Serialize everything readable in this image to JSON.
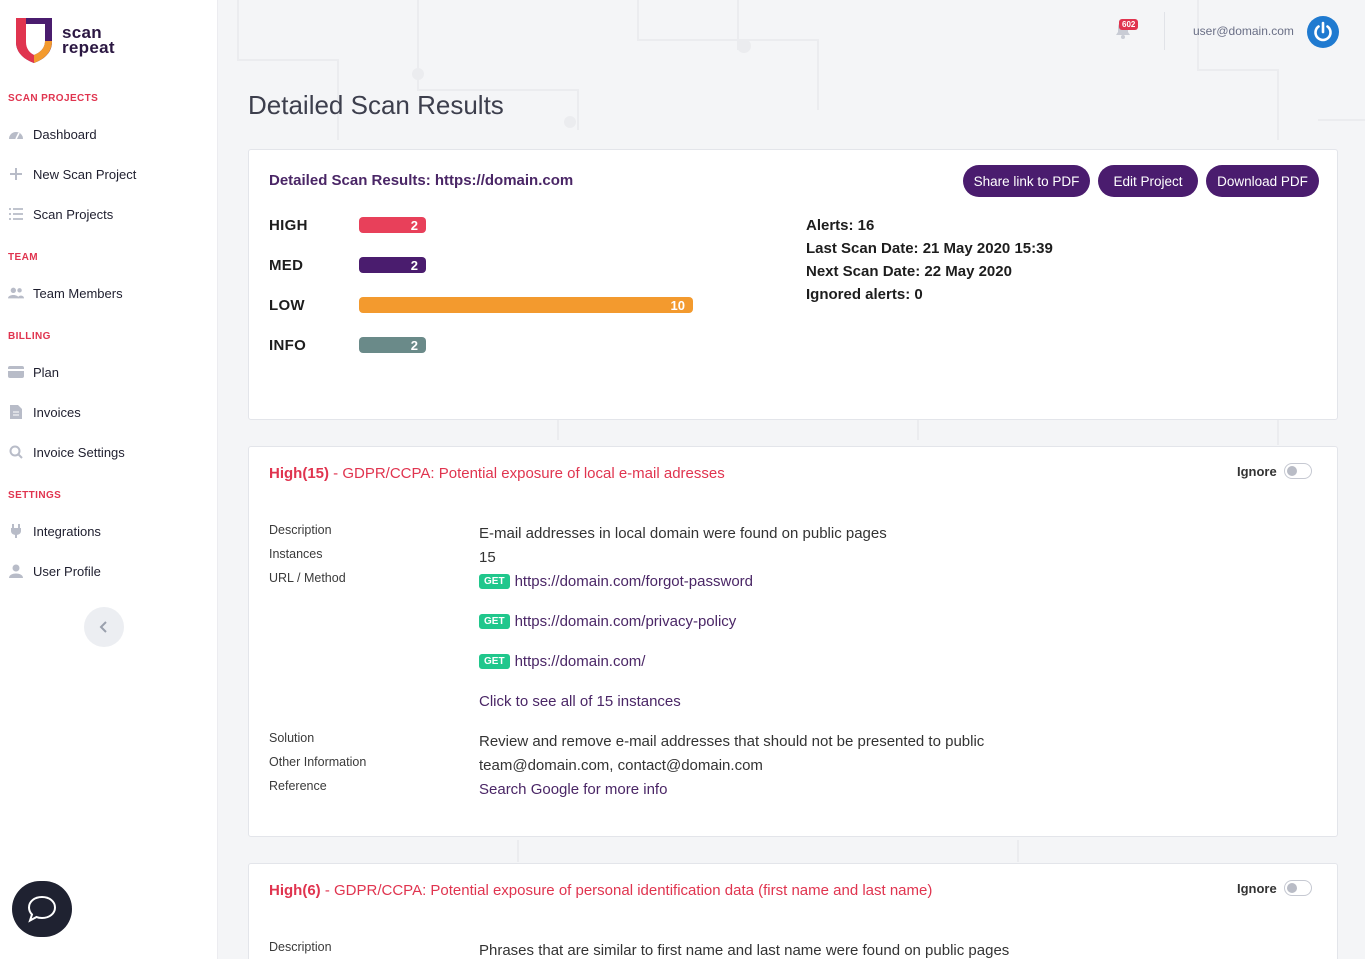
{
  "brand": {
    "line1": "scan",
    "line2": "repeat"
  },
  "sidebar": {
    "sections": [
      {
        "label": "SCAN PROJECTS"
      },
      {
        "label": "TEAM"
      },
      {
        "label": "BILLING"
      },
      {
        "label": "SETTINGS"
      }
    ],
    "items": [
      {
        "label": "Dashboard",
        "icon": "gauge-icon"
      },
      {
        "label": "New Scan Project",
        "icon": "plus-icon"
      },
      {
        "label": "Scan Projects",
        "icon": "list-icon"
      },
      {
        "label": "Team Members",
        "icon": "users-icon"
      },
      {
        "label": "Plan",
        "icon": "card-icon"
      },
      {
        "label": "Invoices",
        "icon": "file-icon"
      },
      {
        "label": "Invoice Settings",
        "icon": "search-icon"
      },
      {
        "label": "Integrations",
        "icon": "plug-icon"
      },
      {
        "label": "User Profile",
        "icon": "user-icon"
      }
    ]
  },
  "topbar": {
    "notifications_count": "602",
    "user_email": "user@domain.com"
  },
  "page": {
    "title": "Detailed Scan Results"
  },
  "summary": {
    "title": "Detailed Scan Results: https://domain.com",
    "buttons": {
      "share": "Share link to PDF",
      "edit": "Edit Project",
      "download": "Download PDF"
    },
    "severities": [
      {
        "label": "HIGH",
        "count": "2",
        "value": 2,
        "color": "#e8405a"
      },
      {
        "label": "MED",
        "count": "2",
        "value": 2,
        "color": "#4a1c6e"
      },
      {
        "label": "LOW",
        "count": "10",
        "value": 10,
        "color": "#f39a2e"
      },
      {
        "label": "INFO",
        "count": "2",
        "value": 2,
        "color": "#6a8a89"
      }
    ],
    "stats": {
      "alerts": "Alerts: 16",
      "last_scan": "Last Scan Date: 21 May 2020 15:39",
      "next_scan": "Next Scan Date: 22 May 2020",
      "ignored": "Ignored alerts: 0"
    }
  },
  "findings": [
    {
      "severity": "High(15)",
      "title": " - GDPR/CCPA: Potential exposure of local e-mail adresses",
      "ignore_label": "Ignore",
      "labels": {
        "description": "Description",
        "instances": "Instances",
        "url_method": "URL / Method",
        "solution": "Solution",
        "other_info": "Other Information",
        "reference": "Reference"
      },
      "description": "E-mail addresses in local domain were found on public pages",
      "instances": "15",
      "urls": [
        {
          "method": "GET",
          "url": "https://domain.com/forgot-password"
        },
        {
          "method": "GET",
          "url": "https://domain.com/privacy-policy"
        },
        {
          "method": "GET",
          "url": "https://domain.com/"
        }
      ],
      "see_all": "Click to see all of 15 instances",
      "solution": "Review and remove e-mail addresses that should not be presented to public",
      "other_info": "team@domain.com, contact@domain.com",
      "reference": "Search Google for more info"
    },
    {
      "severity": "High(6)",
      "title": " - GDPR/CCPA: Potential exposure of personal identification data (first name and last name)",
      "ignore_label": "Ignore",
      "labels": {
        "description": "Description"
      },
      "description": "Phrases that are similar to first name and last name were found on public pages"
    }
  ]
}
